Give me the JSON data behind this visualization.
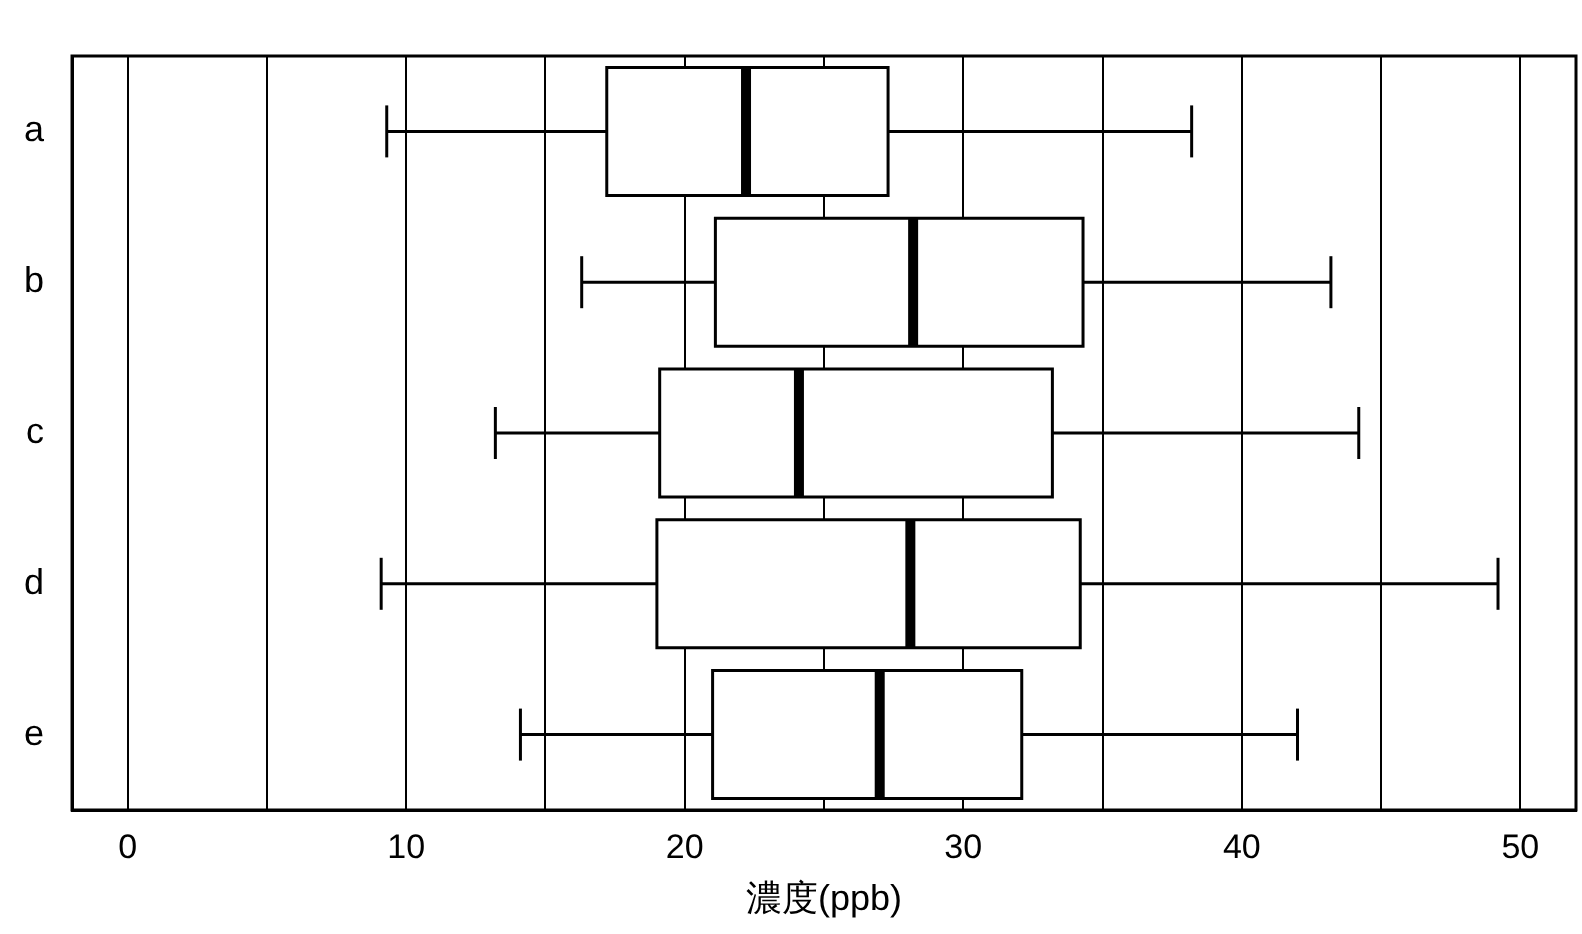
{
  "chart_data": {
    "type": "box",
    "orientation": "horizontal",
    "xlabel": "濃度(ppb)",
    "categories": [
      "a",
      "b",
      "c",
      "d",
      "e"
    ],
    "boxes": [
      {
        "low": 9.3,
        "q1": 17.2,
        "median": 22.2,
        "q3": 27.3,
        "high": 38.2
      },
      {
        "low": 16.3,
        "q1": 21.1,
        "median": 28.2,
        "q3": 34.3,
        "high": 43.2
      },
      {
        "low": 13.2,
        "q1": 19.1,
        "median": 24.1,
        "q3": 33.2,
        "high": 44.2
      },
      {
        "low": 9.1,
        "q1": 19,
        "median": 28.1,
        "q3": 34.2,
        "high": 49.2
      },
      {
        "low": 14.1,
        "q1": 21,
        "median": 27,
        "q3": 32.1,
        "high": 42
      }
    ],
    "xlim": [
      -2,
      52
    ],
    "xticks": [
      0,
      {
        "value": 5,
        "label": null
      },
      10,
      {
        "value": 15,
        "label": null
      },
      20,
      {
        "value": 25,
        "label": null
      },
      30,
      {
        "value": 35,
        "label": null
      },
      40,
      {
        "value": 45,
        "label": null
      },
      50
    ],
    "grid": "x",
    "legend": false
  }
}
